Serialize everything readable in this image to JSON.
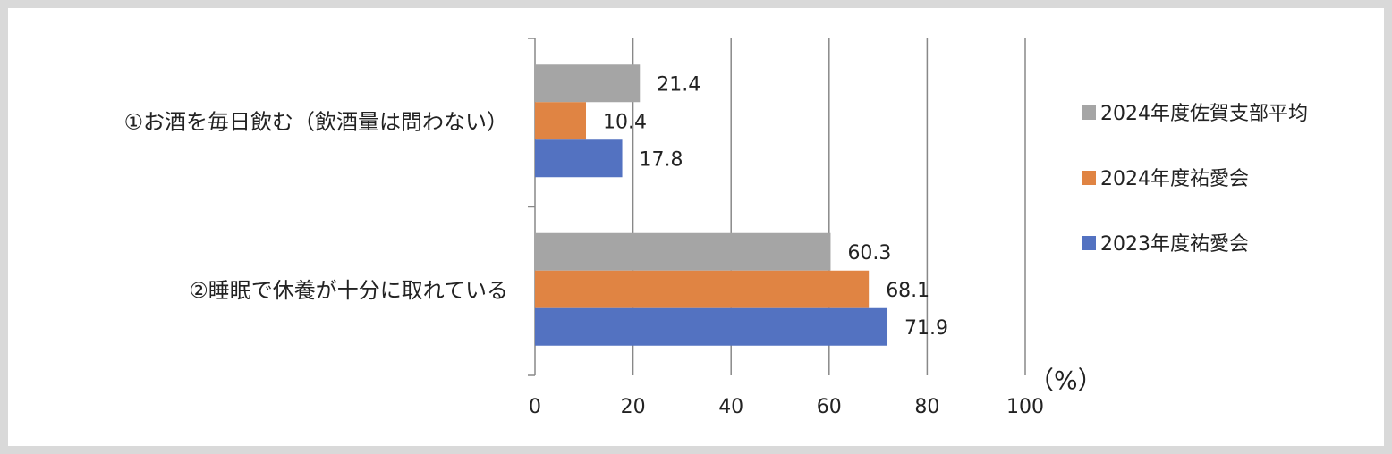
{
  "chart_data": {
    "type": "bar",
    "orientation": "horizontal",
    "categories": [
      "①お酒を毎日飲む（飲酒量は問わない）",
      "②睡眠で休養が十分に取れている"
    ],
    "series": [
      {
        "name": "2024年度佐賀支部平均",
        "color": "#a5a5a5",
        "values": [
          21.4,
          60.3
        ]
      },
      {
        "name": "2024年度祐愛会",
        "color": "#e08443",
        "values": [
          10.4,
          68.1
        ]
      },
      {
        "name": "2023年度祐愛会",
        "color": "#5372c1",
        "values": [
          17.8,
          71.9
        ]
      }
    ],
    "xlim": [
      0,
      100
    ],
    "xticks": [
      0,
      20,
      40,
      60,
      80,
      100
    ],
    "unit_label": "（%）",
    "grid": true,
    "legend_position": "right"
  }
}
